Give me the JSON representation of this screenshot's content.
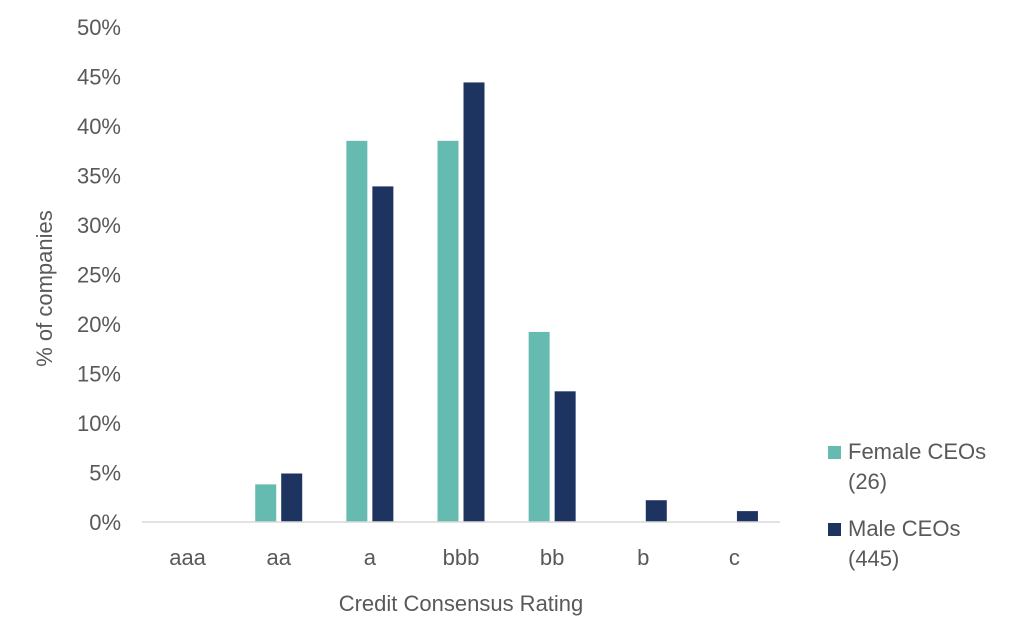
{
  "chart_data": {
    "type": "bar",
    "xlabel": "Credit Consensus Rating",
    "ylabel": "% of companies",
    "categories": [
      "aaa",
      "aa",
      "a",
      "bbb",
      "bb",
      "b",
      "c"
    ],
    "ylim": [
      0,
      50
    ],
    "yticks": [
      "0%",
      "5%",
      "10%",
      "15%",
      "20%",
      "25%",
      "30%",
      "35%",
      "40%",
      "45%",
      "50%"
    ],
    "grid": false,
    "legend_position": "right",
    "series": [
      {
        "name_lines": [
          "Female CEOs",
          "(26)"
        ],
        "color": "#66bbb1",
        "values": [
          0,
          3.8,
          38.5,
          38.5,
          19.2,
          0,
          0
        ]
      },
      {
        "name_lines": [
          "Male CEOs",
          "(445)"
        ],
        "color": "#1d3461",
        "values": [
          0,
          4.9,
          33.9,
          44.4,
          13.2,
          2.2,
          1.1
        ]
      }
    ]
  }
}
